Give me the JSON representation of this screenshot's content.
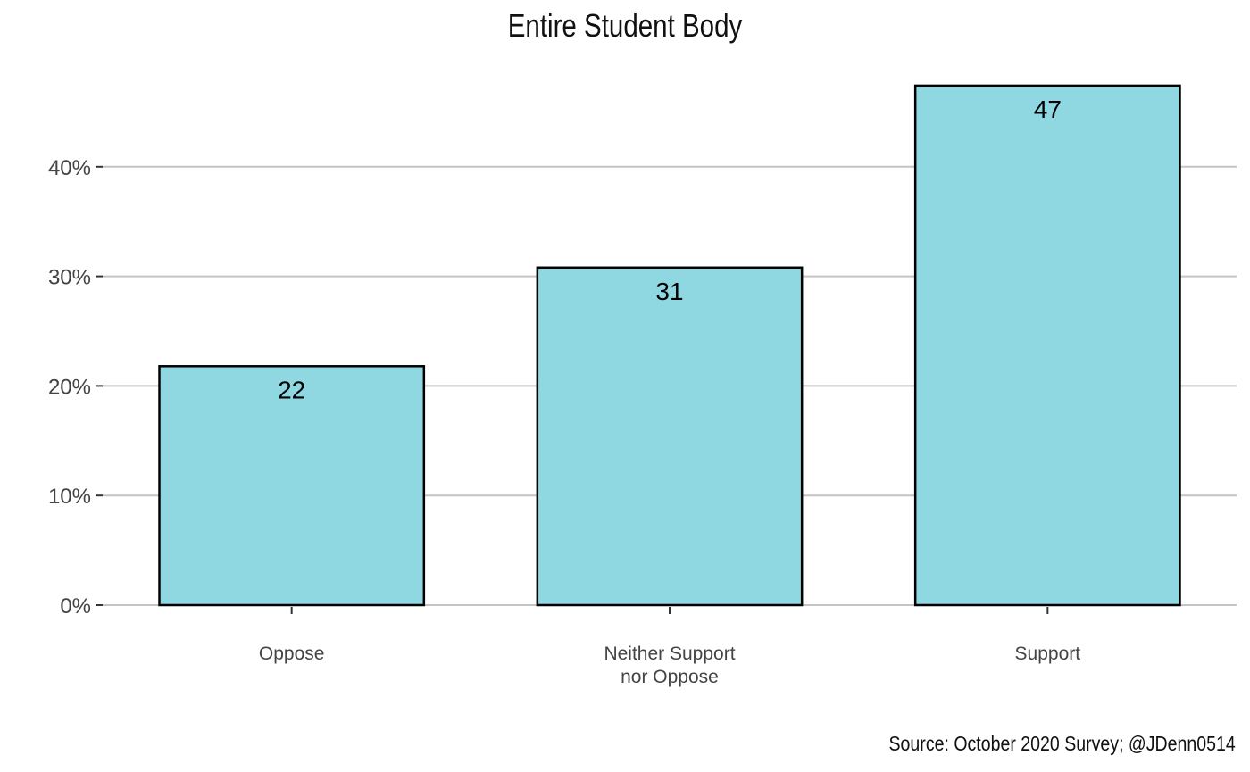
{
  "chart_data": {
    "type": "bar",
    "title": "Entire Student Body",
    "caption": "Source: October 2020 Survey; @JDenn0514",
    "xlabel": "",
    "ylabel": "",
    "categories": [
      [
        "Oppose"
      ],
      [
        "Neither Support",
        "nor Oppose"
      ],
      [
        "Support"
      ]
    ],
    "values": [
      21.8,
      30.8,
      47.4
    ],
    "data_labels": [
      "22",
      "31",
      "47"
    ],
    "ylim": [
      0,
      50
    ],
    "yticks": [
      0,
      10,
      20,
      30,
      40
    ],
    "ytick_labels": [
      "0%",
      "10%",
      "20%",
      "30%",
      "40%"
    ],
    "grid": {
      "horizontal": true,
      "vertical": false
    },
    "colors": {
      "bar_fill": "#8fd8e2",
      "bar_stroke": "#000000",
      "grid": "#c4c4c4",
      "tick_text": "#444444"
    }
  }
}
